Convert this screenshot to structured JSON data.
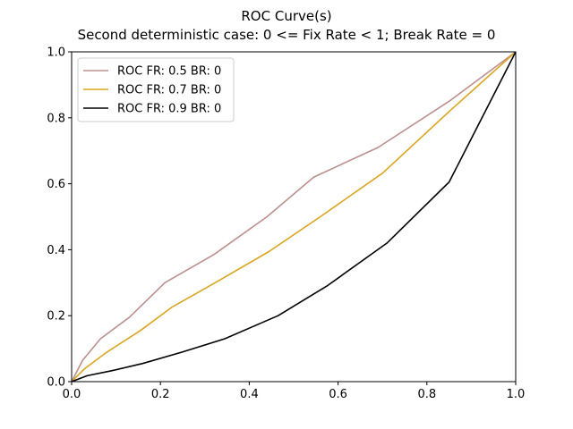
{
  "chart_data": {
    "type": "line",
    "title": "ROC Curve(s)",
    "subtitle": "Second deterministic case: 0 <= Fix Rate < 1; Break Rate = 0",
    "xlabel": "",
    "ylabel": "",
    "xlim": [
      0,
      1
    ],
    "ylim": [
      0,
      1
    ],
    "xticks": [
      "0.0",
      "0.2",
      "0.4",
      "0.6",
      "0.8",
      "1.0"
    ],
    "yticks": [
      "0.0",
      "0.2",
      "0.4",
      "0.6",
      "0.8",
      "1.0"
    ],
    "grid": false,
    "legend_position": "top-left",
    "series": [
      {
        "name": "ROC FR: 0.5 BR: 0",
        "color": "#bc8f8f",
        "x": [
          0.0,
          0.025,
          0.065,
          0.13,
          0.21,
          0.32,
          0.44,
          0.545,
          0.69,
          0.85,
          1.0
        ],
        "y": [
          0.0,
          0.065,
          0.13,
          0.195,
          0.3,
          0.385,
          0.5,
          0.62,
          0.71,
          0.85,
          1.0
        ]
      },
      {
        "name": "ROC FR: 0.7 BR: 0",
        "color": "#daa520",
        "x": [
          0.0,
          0.03,
          0.08,
          0.155,
          0.225,
          0.33,
          0.445,
          0.56,
          0.7,
          0.855,
          1.0
        ],
        "y": [
          0.0,
          0.04,
          0.09,
          0.155,
          0.225,
          0.305,
          0.395,
          0.5,
          0.632,
          0.825,
          1.0
        ]
      },
      {
        "name": "ROC FR: 0.9 BR: 0",
        "color": "#000000",
        "x": [
          0.0,
          0.035,
          0.09,
          0.16,
          0.25,
          0.345,
          0.465,
          0.575,
          0.71,
          0.85,
          1.0
        ],
        "y": [
          0.0,
          0.018,
          0.033,
          0.055,
          0.09,
          0.13,
          0.2,
          0.29,
          0.42,
          0.605,
          1.0
        ]
      }
    ]
  }
}
